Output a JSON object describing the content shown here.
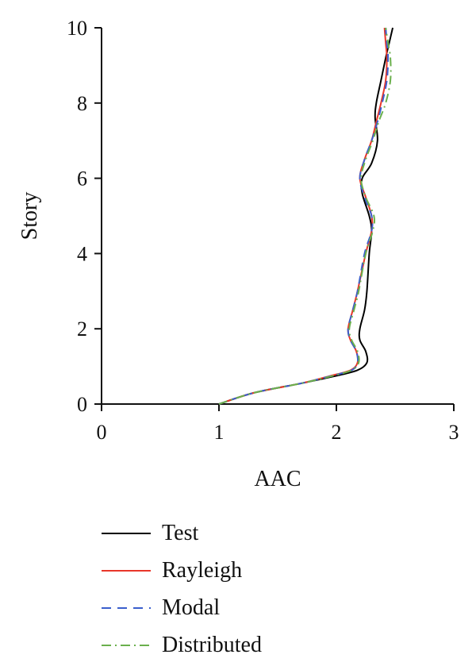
{
  "chart_data": {
    "type": "line",
    "xlabel": "AAC",
    "ylabel": "Story",
    "xlim": [
      0,
      3
    ],
    "ylim": [
      0,
      10
    ],
    "xticks": [
      "0",
      "1",
      "2",
      "3"
    ],
    "yticks": [
      "0",
      "2",
      "4",
      "6",
      "8",
      "10"
    ],
    "grid": false,
    "legend_position": "bottom",
    "series": [
      {
        "name": "Test",
        "color": "#000000",
        "dash": "solid",
        "points": [
          [
            1.0,
            0
          ],
          [
            1.3,
            0.3
          ],
          [
            1.7,
            0.55
          ],
          [
            2.0,
            0.75
          ],
          [
            2.18,
            0.9
          ],
          [
            2.26,
            1.1
          ],
          [
            2.25,
            1.4
          ],
          [
            2.2,
            1.7
          ],
          [
            2.2,
            2.0
          ],
          [
            2.24,
            2.5
          ],
          [
            2.26,
            3.0
          ],
          [
            2.28,
            4.0
          ],
          [
            2.3,
            4.6
          ],
          [
            2.28,
            5.0
          ],
          [
            2.22,
            5.6
          ],
          [
            2.22,
            6.0
          ],
          [
            2.3,
            6.4
          ],
          [
            2.35,
            7.0
          ],
          [
            2.33,
            7.6
          ],
          [
            2.34,
            8.0
          ],
          [
            2.38,
            8.6
          ],
          [
            2.42,
            9.2
          ],
          [
            2.45,
            9.6
          ],
          [
            2.48,
            10.0
          ]
        ]
      },
      {
        "name": "Rayleigh",
        "color": "#e8362a",
        "dash": "solid",
        "points": [
          [
            1.0,
            0
          ],
          [
            1.3,
            0.3
          ],
          [
            1.7,
            0.55
          ],
          [
            1.95,
            0.75
          ],
          [
            2.12,
            0.9
          ],
          [
            2.18,
            1.1
          ],
          [
            2.17,
            1.4
          ],
          [
            2.12,
            1.7
          ],
          [
            2.1,
            2.0
          ],
          [
            2.14,
            2.5
          ],
          [
            2.18,
            3.0
          ],
          [
            2.25,
            4.0
          ],
          [
            2.3,
            4.6
          ],
          [
            2.3,
            5.0
          ],
          [
            2.25,
            5.5
          ],
          [
            2.2,
            6.0
          ],
          [
            2.24,
            6.5
          ],
          [
            2.3,
            7.0
          ],
          [
            2.34,
            7.5
          ],
          [
            2.38,
            8.0
          ],
          [
            2.42,
            8.6
          ],
          [
            2.43,
            9.2
          ],
          [
            2.42,
            9.6
          ],
          [
            2.41,
            10.0
          ]
        ]
      },
      {
        "name": "Modal",
        "color": "#3a5fcd",
        "dash": "dashed",
        "points": [
          [
            1.0,
            0
          ],
          [
            1.3,
            0.3
          ],
          [
            1.7,
            0.55
          ],
          [
            1.96,
            0.75
          ],
          [
            2.13,
            0.9
          ],
          [
            2.18,
            1.1
          ],
          [
            2.17,
            1.4
          ],
          [
            2.12,
            1.7
          ],
          [
            2.1,
            2.0
          ],
          [
            2.14,
            2.5
          ],
          [
            2.18,
            3.0
          ],
          [
            2.24,
            4.0
          ],
          [
            2.3,
            4.6
          ],
          [
            2.3,
            5.0
          ],
          [
            2.24,
            5.5
          ],
          [
            2.2,
            6.0
          ],
          [
            2.24,
            6.5
          ],
          [
            2.3,
            7.0
          ],
          [
            2.35,
            7.5
          ],
          [
            2.39,
            8.0
          ],
          [
            2.43,
            8.6
          ],
          [
            2.44,
            9.2
          ],
          [
            2.43,
            9.6
          ],
          [
            2.42,
            10.0
          ]
        ]
      },
      {
        "name": "Distributed",
        "color": "#6ab04c",
        "dash": "dashdot",
        "points": [
          [
            1.0,
            0
          ],
          [
            1.3,
            0.3
          ],
          [
            1.7,
            0.55
          ],
          [
            1.97,
            0.75
          ],
          [
            2.13,
            0.9
          ],
          [
            2.19,
            1.1
          ],
          [
            2.18,
            1.4
          ],
          [
            2.13,
            1.7
          ],
          [
            2.11,
            2.0
          ],
          [
            2.15,
            2.5
          ],
          [
            2.19,
            3.0
          ],
          [
            2.25,
            4.0
          ],
          [
            2.31,
            4.6
          ],
          [
            2.32,
            5.0
          ],
          [
            2.25,
            5.5
          ],
          [
            2.21,
            6.0
          ],
          [
            2.25,
            6.5
          ],
          [
            2.31,
            7.0
          ],
          [
            2.36,
            7.5
          ],
          [
            2.42,
            8.0
          ],
          [
            2.46,
            8.6
          ],
          [
            2.46,
            9.2
          ],
          [
            2.44,
            9.6
          ],
          [
            2.42,
            10.0
          ]
        ]
      }
    ]
  }
}
